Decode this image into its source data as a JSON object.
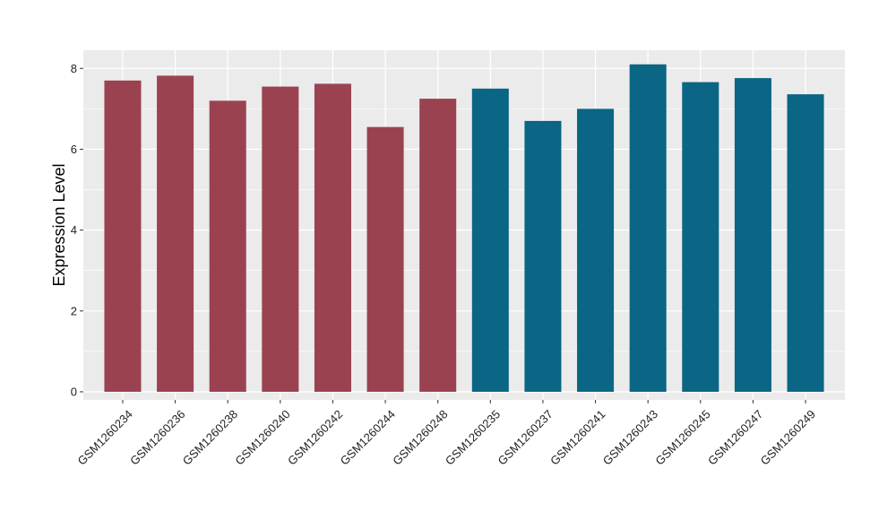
{
  "chart_data": {
    "type": "bar",
    "categories": [
      "GSM1260234",
      "GSM1260236",
      "GSM1260238",
      "GSM1260240",
      "GSM1260242",
      "GSM1260244",
      "GSM1260248",
      "GSM1260235",
      "GSM1260237",
      "GSM1260241",
      "GSM1260243",
      "GSM1260245",
      "GSM1260247",
      "GSM1260249"
    ],
    "values": [
      7.7,
      7.82,
      7.2,
      7.55,
      7.62,
      6.55,
      7.25,
      7.5,
      6.7,
      7.0,
      8.1,
      7.66,
      7.76,
      7.36
    ],
    "bar_colors": [
      "#9b4250",
      "#9b4250",
      "#9b4250",
      "#9b4250",
      "#9b4250",
      "#9b4250",
      "#9b4250",
      "#0b6584",
      "#0b6584",
      "#0b6584",
      "#0b6584",
      "#0b6584",
      "#0b6584",
      "#0b6584"
    ],
    "xlabel": "",
    "ylabel": "Expression Level",
    "ylim": [
      -0.2,
      8.45
    ],
    "yticks": [
      0,
      2,
      4,
      6,
      8
    ],
    "grid": true,
    "panel_background": "#ebebeb",
    "grid_color": "#ffffff"
  }
}
